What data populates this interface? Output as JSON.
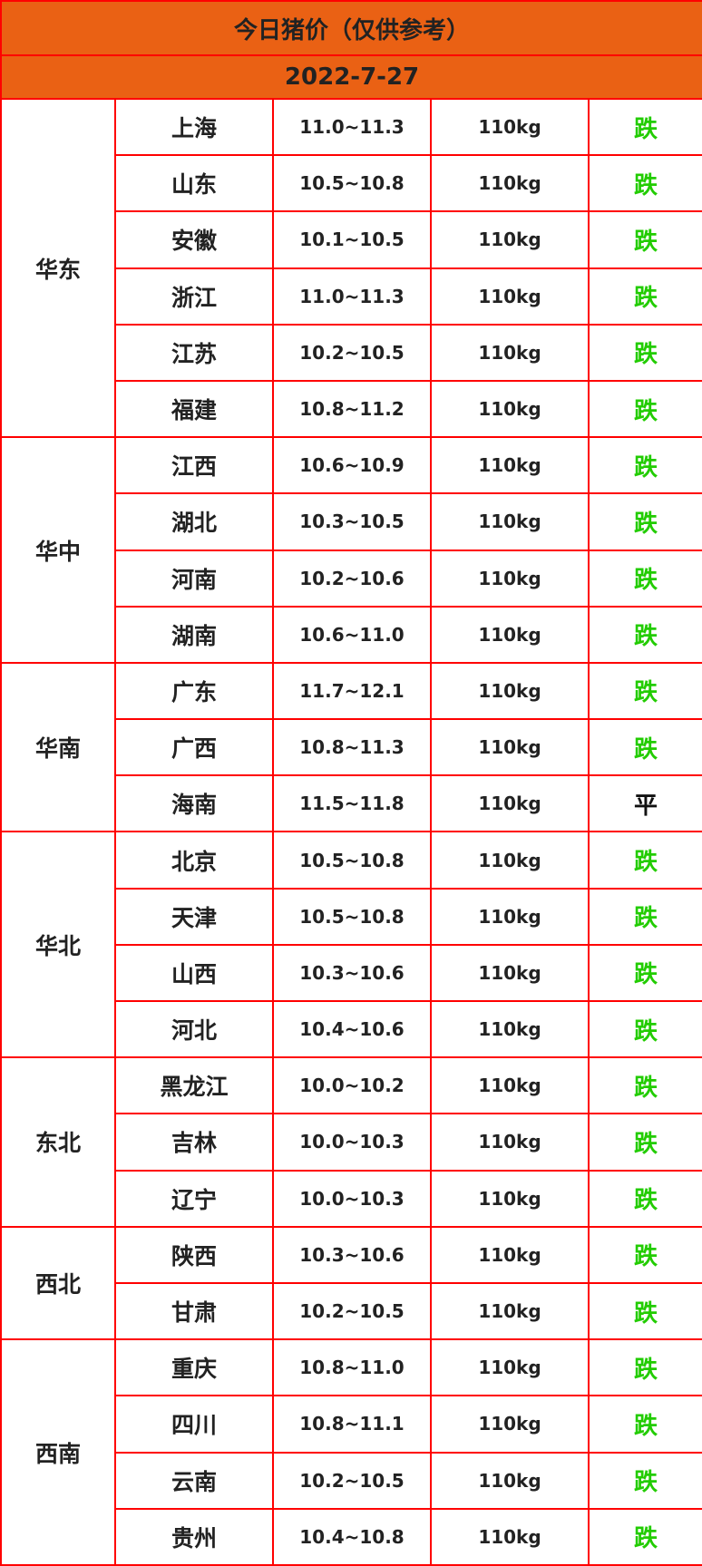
{
  "title": "今日猪价（仅供参考）",
  "date": "2022-7-27",
  "colors": {
    "header_bg": "#ea6114",
    "border": "#ff0000",
    "down": "#22cc00",
    "flat": "#111111"
  },
  "regions": [
    {
      "name": "华东",
      "rows": [
        {
          "province": "上海",
          "price": "11.0~11.3",
          "weight": "110kg",
          "trend": "跌"
        },
        {
          "province": "山东",
          "price": "10.5~10.8",
          "weight": "110kg",
          "trend": "跌"
        },
        {
          "province": "安徽",
          "price": "10.1~10.5",
          "weight": "110kg",
          "trend": "跌"
        },
        {
          "province": "浙江",
          "price": "11.0~11.3",
          "weight": "110kg",
          "trend": "跌"
        },
        {
          "province": "江苏",
          "price": "10.2~10.5",
          "weight": "110kg",
          "trend": "跌"
        },
        {
          "province": "福建",
          "price": "10.8~11.2",
          "weight": "110kg",
          "trend": "跌"
        }
      ]
    },
    {
      "name": "华中",
      "rows": [
        {
          "province": "江西",
          "price": "10.6~10.9",
          "weight": "110kg",
          "trend": "跌"
        },
        {
          "province": "湖北",
          "price": "10.3~10.5",
          "weight": "110kg",
          "trend": "跌"
        },
        {
          "province": "河南",
          "price": "10.2~10.6",
          "weight": "110kg",
          "trend": "跌"
        },
        {
          "province": "湖南",
          "price": "10.6~11.0",
          "weight": "110kg",
          "trend": "跌"
        }
      ]
    },
    {
      "name": "华南",
      "rows": [
        {
          "province": "广东",
          "price": "11.7~12.1",
          "weight": "110kg",
          "trend": "跌"
        },
        {
          "province": "广西",
          "price": "10.8~11.3",
          "weight": "110kg",
          "trend": "跌"
        },
        {
          "province": "海南",
          "price": "11.5~11.8",
          "weight": "110kg",
          "trend": "平"
        }
      ]
    },
    {
      "name": "华北",
      "rows": [
        {
          "province": "北京",
          "price": "10.5~10.8",
          "weight": "110kg",
          "trend": "跌"
        },
        {
          "province": "天津",
          "price": "10.5~10.8",
          "weight": "110kg",
          "trend": "跌"
        },
        {
          "province": "山西",
          "price": "10.3~10.6",
          "weight": "110kg",
          "trend": "跌"
        },
        {
          "province": "河北",
          "price": "10.4~10.6",
          "weight": "110kg",
          "trend": "跌"
        }
      ]
    },
    {
      "name": "东北",
      "rows": [
        {
          "province": "黑龙江",
          "price": "10.0~10.2",
          "weight": "110kg",
          "trend": "跌"
        },
        {
          "province": "吉林",
          "price": "10.0~10.3",
          "weight": "110kg",
          "trend": "跌"
        },
        {
          "province": "辽宁",
          "price": "10.0~10.3",
          "weight": "110kg",
          "trend": "跌"
        }
      ]
    },
    {
      "name": "西北",
      "rows": [
        {
          "province": "陕西",
          "price": "10.3~10.6",
          "weight": "110kg",
          "trend": "跌"
        },
        {
          "province": "甘肃",
          "price": "10.2~10.5",
          "weight": "110kg",
          "trend": "跌"
        }
      ]
    },
    {
      "name": "西南",
      "rows": [
        {
          "province": "重庆",
          "price": "10.8~11.0",
          "weight": "110kg",
          "trend": "跌"
        },
        {
          "province": "四川",
          "price": "10.8~11.1",
          "weight": "110kg",
          "trend": "跌"
        },
        {
          "province": "云南",
          "price": "10.2~10.5",
          "weight": "110kg",
          "trend": "跌"
        },
        {
          "province": "贵州",
          "price": "10.4~10.8",
          "weight": "110kg",
          "trend": "跌"
        }
      ]
    }
  ]
}
